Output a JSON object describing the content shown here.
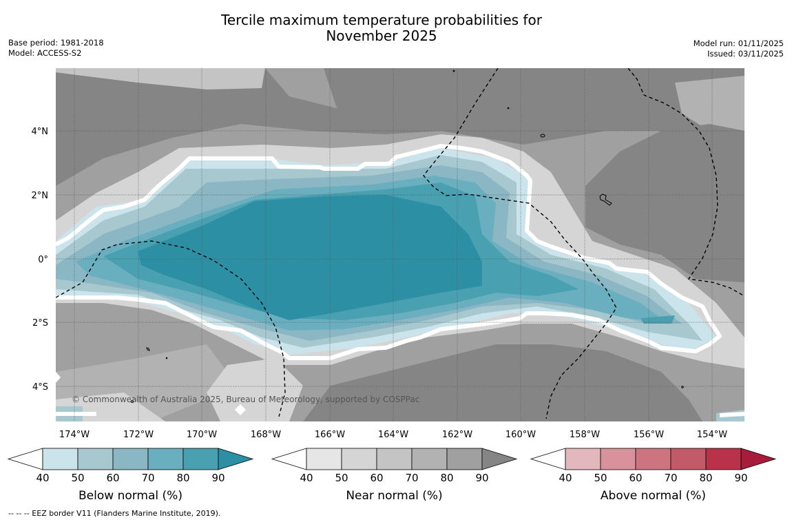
{
  "title_line1": "Tercile maximum temperature probabilities for",
  "title_line2": "November 2025",
  "base_period": "Base period: 1981-2018",
  "model": "Model: ACCESS-S2",
  "model_run": "Model run: 01/11/2025",
  "issued": "Issued: 03/11/2025",
  "copyright": "© Commonwealth of Australia 2025, Bureau of Meteorology, supported by COSPPac",
  "footnote": "--  --  -- EEZ border V11 (Flanders Marine Institute, 2019).",
  "map": {
    "lon_labels": [
      "174°W",
      "172°W",
      "170°W",
      "168°W",
      "166°W",
      "164°W",
      "162°W",
      "160°W",
      "158°W",
      "156°W",
      "154°W"
    ],
    "lat_labels": [
      "4°N",
      "2°N",
      "0°",
      "2°S",
      "4°S"
    ]
  },
  "colorbars": [
    {
      "title": "Below normal (%)",
      "ticks": [
        "40",
        "50",
        "60",
        "70",
        "80",
        "90"
      ],
      "colors": [
        "#ffffff",
        "#cbe3ea",
        "#a8c8cf",
        "#8bb6c4",
        "#6aafbf",
        "#49a0b1",
        "#2c8fa4"
      ]
    },
    {
      "title": "Near normal (%)",
      "ticks": [
        "40",
        "50",
        "60",
        "70",
        "80",
        "90"
      ],
      "colors": [
        "#ffffff",
        "#e6e6e6",
        "#d5d5d5",
        "#c4c4c4",
        "#b2b2b2",
        "#a0a0a0",
        "#858585"
      ]
    },
    {
      "title": "Above normal (%)",
      "ticks": [
        "40",
        "50",
        "60",
        "70",
        "80",
        "90"
      ],
      "colors": [
        "#ffffff",
        "#e3b7be",
        "#d9929c",
        "#cd7480",
        "#c35a68",
        "#b8334a",
        "#a71c3a"
      ]
    }
  ]
}
